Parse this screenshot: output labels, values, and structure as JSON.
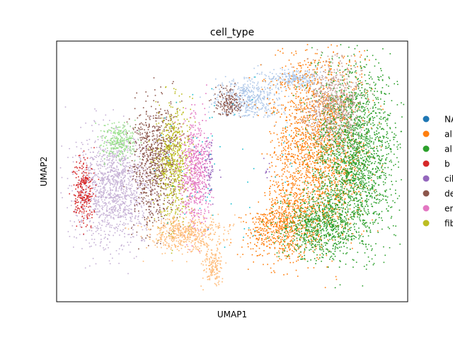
{
  "chart_data": {
    "type": "scatter",
    "title": "cell_type",
    "xlabel": "UMAP1",
    "ylabel": "UMAP2",
    "grid": false,
    "ticks": false,
    "legend_position": "right (clipped)",
    "series": [
      {
        "name": "NA",
        "label": "NA",
        "color": "#1f77b4"
      },
      {
        "name": "al",
        "label": "al",
        "color": "#ff7f0e"
      },
      {
        "name": "al",
        "label": "al",
        "color": "#2ca02c"
      },
      {
        "name": "b",
        "label": "b",
        "color": "#d62728"
      },
      {
        "name": "cil",
        "label": "cil",
        "color": "#9467bd"
      },
      {
        "name": "de",
        "label": "de",
        "color": "#8c564b"
      },
      {
        "name": "er",
        "label": "er",
        "color": "#e377c2"
      },
      {
        "name": "fib",
        "label": "fib",
        "color": "#bcbd22"
      }
    ],
    "unlabeled_colors": [
      "#aec7e8",
      "#c5b0d5",
      "#98df8a",
      "#ffbb78",
      "#17becf",
      "#c49c94"
    ]
  }
}
